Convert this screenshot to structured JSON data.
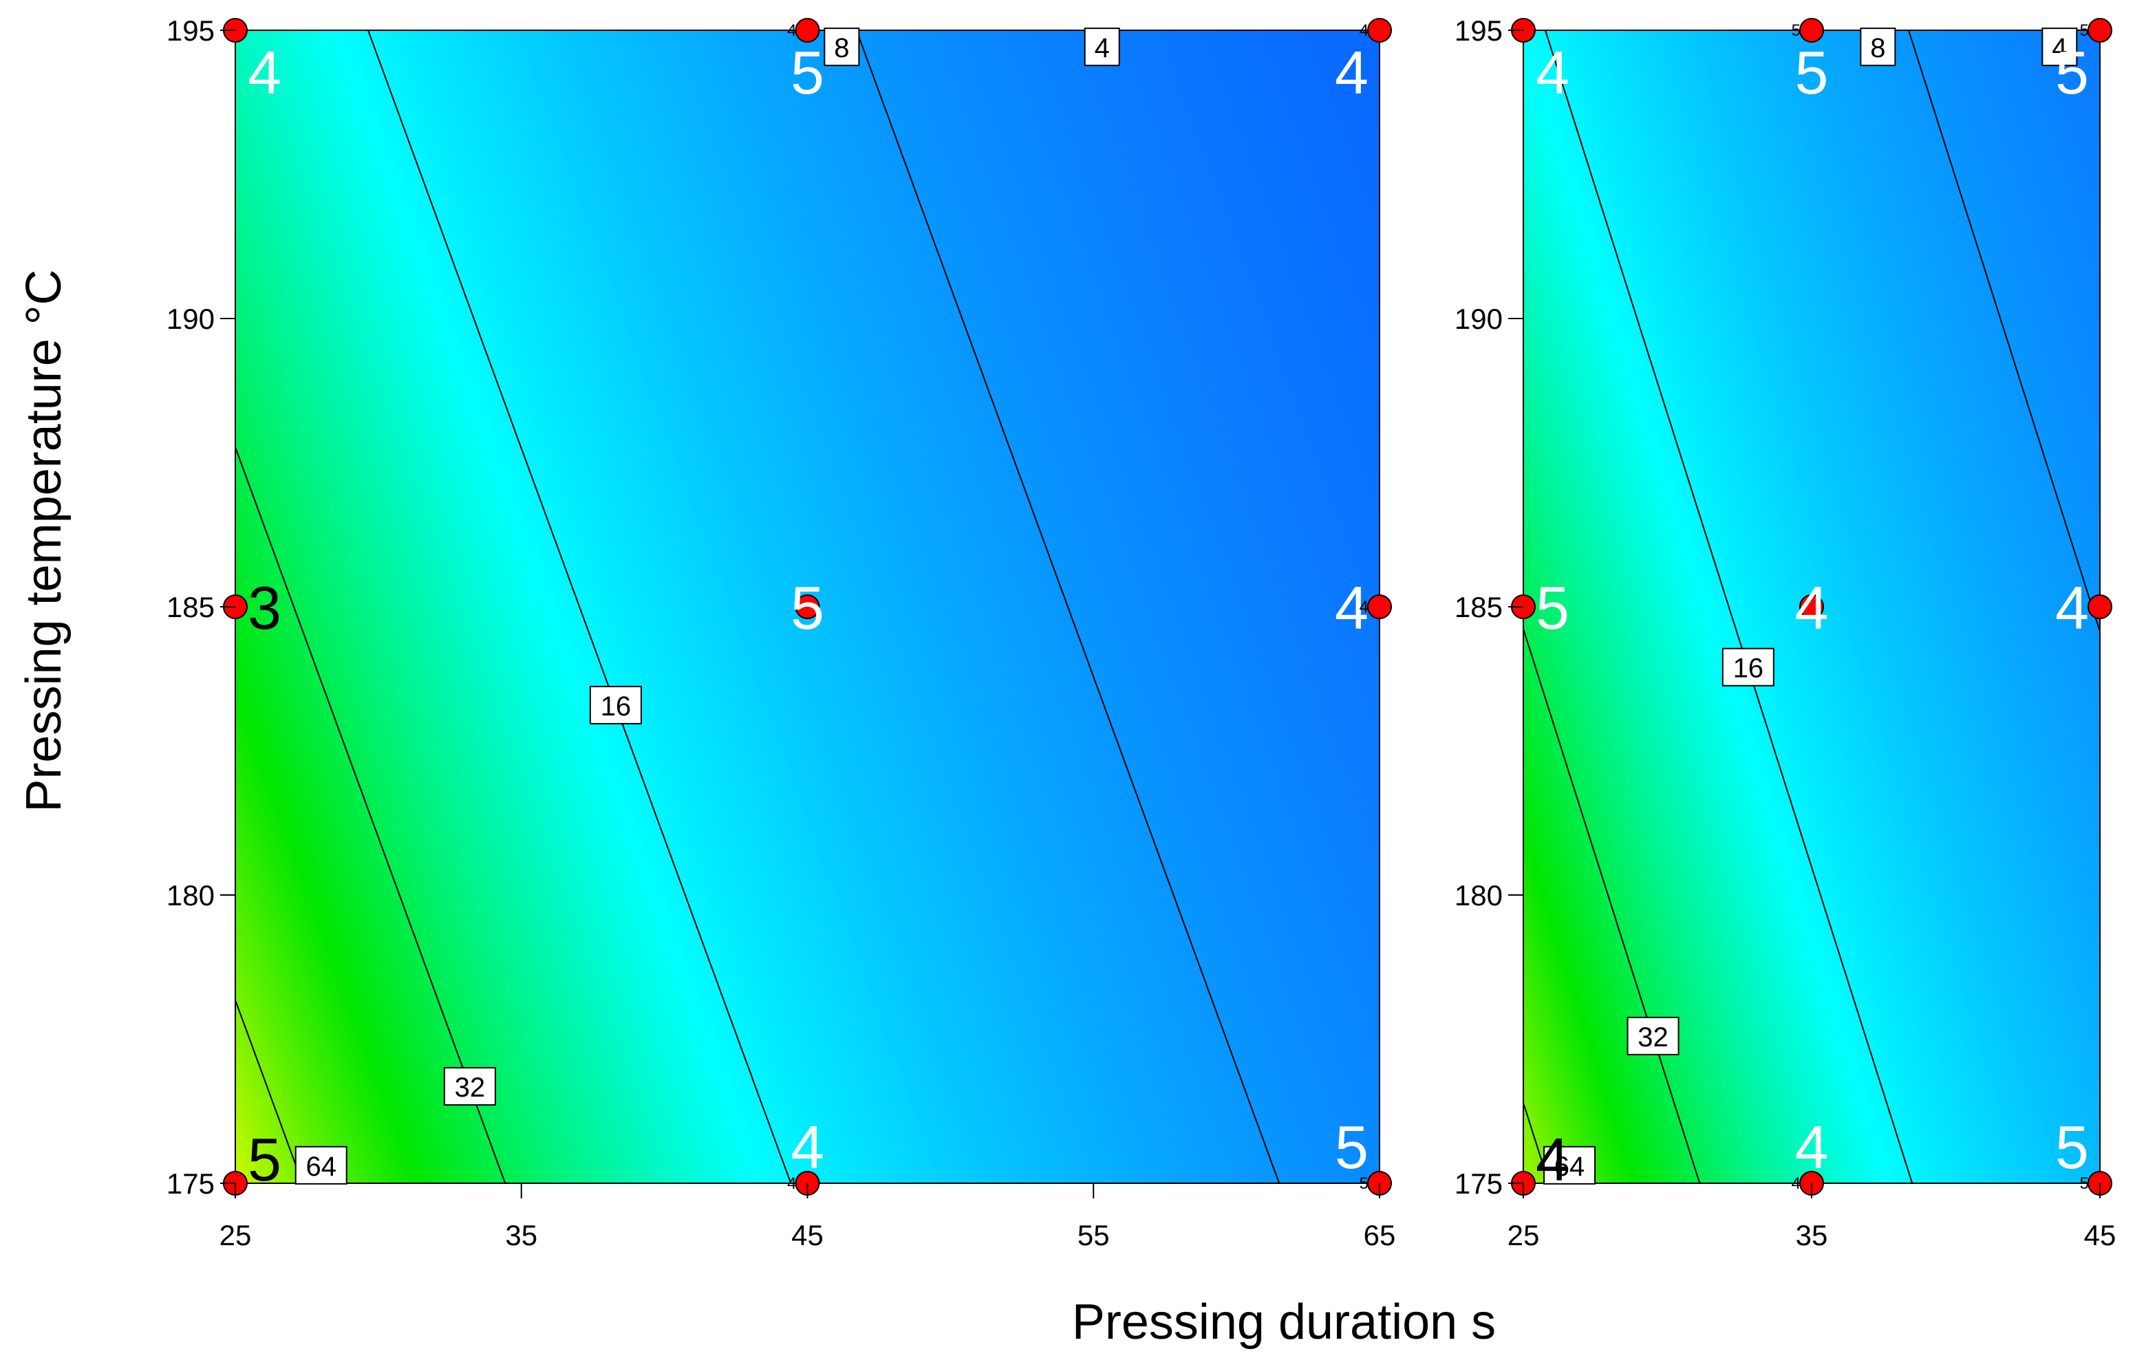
{
  "chart_data": {
    "type": "contour",
    "xlabel": "Pressing duration s",
    "ylabel": "Pressing temperature °C",
    "contour_levels": [
      4,
      8,
      16,
      32,
      64
    ],
    "colormap": [
      "#0000ff",
      "#0a7aff",
      "#00ffff",
      "#00e600",
      "#ffff00"
    ],
    "point_color": "#ff0000",
    "panels": [
      {
        "xlim": [
          25,
          65
        ],
        "ylim": [
          175,
          195
        ],
        "x_ticks": [
          "25",
          "35",
          "45",
          "55",
          "65"
        ],
        "y_ticks": [
          "175",
          "180",
          "185",
          "190",
          "195"
        ],
        "surface": {
          "a": 26.5,
          "b": 7.6,
          "p": 0.0406,
          "q": 0.03
        },
        "contour_labels": [
          {
            "text": "64",
            "level": 64,
            "x": 28.0
          },
          {
            "text": "32",
            "level": 32,
            "x": 33.2
          },
          {
            "text": "16",
            "level": 16,
            "x": 38.3
          },
          {
            "text": "8",
            "level": 8,
            "x": 46.2
          },
          {
            "text": "4",
            "level": 4,
            "x": 55.3
          }
        ],
        "points": [
          {
            "x": 25,
            "y": 195,
            "label": "4",
            "label_color": "#ffffff",
            "small": ""
          },
          {
            "x": 45,
            "y": 195,
            "label": "5",
            "label_color": "#ffffff",
            "small": "4"
          },
          {
            "x": 65,
            "y": 195,
            "label": "4",
            "label_color": "#ffffff",
            "small": "4"
          },
          {
            "x": 25,
            "y": 185,
            "label": "3",
            "label_color": "#000000",
            "small": ""
          },
          {
            "x": 45,
            "y": 185,
            "label": "5",
            "label_color": "#ffffff",
            "small": ""
          },
          {
            "x": 65,
            "y": 185,
            "label": "4",
            "label_color": "#ffffff",
            "small": "4"
          },
          {
            "x": 25,
            "y": 175,
            "label": "5",
            "label_color": "#000000",
            "small": ""
          },
          {
            "x": 45,
            "y": 175,
            "label": "4",
            "label_color": "#ffffff",
            "small": "4"
          },
          {
            "x": 65,
            "y": 175,
            "label": "5",
            "label_color": "#ffffff",
            "small": "5"
          }
        ]
      },
      {
        "xlim": [
          25,
          45
        ],
        "ylim": [
          175,
          195
        ],
        "x_ticks": [
          "25",
          "35",
          "45"
        ],
        "y_ticks": [
          "175",
          "180",
          "185",
          "190",
          "195"
        ],
        "surface": {
          "a": 16.5,
          "b": 7.3,
          "p": 0.055,
          "q": 0.035
        },
        "contour_labels": [
          {
            "text": "64",
            "level": 64,
            "x": 26.6
          },
          {
            "text": "32",
            "level": 32,
            "x": 29.5
          },
          {
            "text": "16",
            "level": 16,
            "x": 32.8
          },
          {
            "text": "8",
            "level": 8,
            "x": 37.3
          },
          {
            "text": "4",
            "level": 4,
            "x": 43.6
          }
        ],
        "points": [
          {
            "x": 25,
            "y": 195,
            "label": "4",
            "label_color": "#ffffff",
            "small": ""
          },
          {
            "x": 35,
            "y": 195,
            "label": "5",
            "label_color": "#ffffff",
            "small": "5"
          },
          {
            "x": 45,
            "y": 195,
            "label": "5",
            "label_color": "#ffffff",
            "small": "5"
          },
          {
            "x": 25,
            "y": 185,
            "label": "5",
            "label_color": "#ffffff",
            "small": ""
          },
          {
            "x": 35,
            "y": 185,
            "label": "4",
            "label_color": "#ffffff",
            "small": ""
          },
          {
            "x": 45,
            "y": 185,
            "label": "4",
            "label_color": "#ffffff",
            "small": ""
          },
          {
            "x": 25,
            "y": 175,
            "label": "4",
            "label_color": "#000000",
            "small": ""
          },
          {
            "x": 35,
            "y": 175,
            "label": "4",
            "label_color": "#ffffff",
            "small": "4"
          },
          {
            "x": 45,
            "y": 175,
            "label": "5",
            "label_color": "#ffffff",
            "small": "5"
          }
        ]
      }
    ]
  }
}
